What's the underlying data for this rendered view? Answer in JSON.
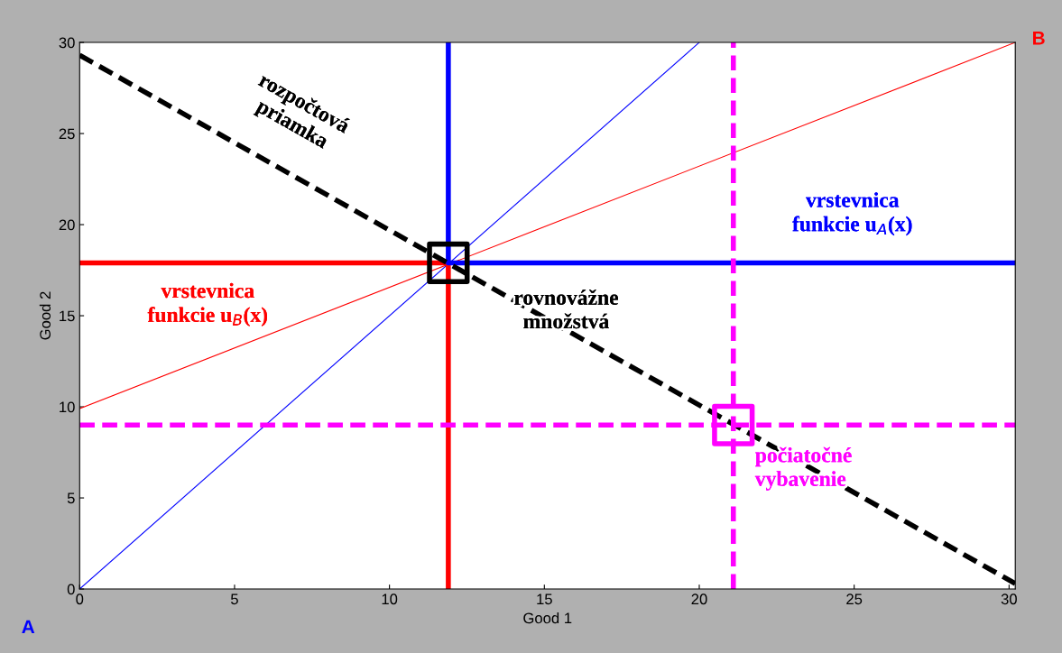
{
  "chart_data": {
    "type": "line",
    "xlabel": "Good 1",
    "ylabel": "Good 2",
    "xlim": [
      0,
      30.2
    ],
    "ylim": [
      0,
      30
    ],
    "xticks": [
      0,
      5,
      10,
      15,
      20,
      25,
      30
    ],
    "yticks": [
      0,
      5,
      10,
      15,
      20,
      25,
      30
    ],
    "grid": false,
    "series": [
      {
        "color": "#0000ff",
        "x": [
          0,
          20
        ],
        "values": [
          0,
          30
        ]
      },
      {
        "color": "#ff0000",
        "x": [
          0,
          30.2
        ],
        "values": [
          9.9,
          30
        ]
      },
      {
        "color": "#ff0000",
        "x": [
          0,
          11.9,
          11.9
        ],
        "values": [
          17.9,
          17.9,
          0
        ]
      },
      {
        "color": "#0000ff",
        "x": [
          11.9,
          11.9,
          30.2
        ],
        "values": [
          30,
          17.9,
          17.9
        ]
      },
      {
        "color": "#000000",
        "x": [
          0,
          30.2
        ],
        "values": [
          29.3,
          0.3
        ],
        "line_style": "dashed"
      },
      {
        "type": "scatter",
        "marker": "square",
        "color": "#000000",
        "x": [
          11.9
        ],
        "values": [
          17.9
        ]
      },
      {
        "type": "scatter",
        "marker": "square",
        "color": "#ff00ff",
        "x": [
          21.1
        ],
        "values": [
          9
        ]
      }
    ],
    "ref_lines": [
      {
        "axis": "y",
        "value": 9,
        "color": "#ff00ff",
        "line_style": "dashed"
      },
      {
        "axis": "x",
        "value": 21.1,
        "color": "#ff00ff",
        "line_style": "dashed",
        "label": "počiatočné\nvybavenie"
      }
    ],
    "annotations": [
      "rozpočtová\npriamka",
      "vrstevnica\nfunkcie u$_{B}$(x)",
      "vrstevnica\nfunkcie u$_{A}$(x)",
      "rovnovážne\nmnožstvá",
      "A",
      "B"
    ]
  }
}
